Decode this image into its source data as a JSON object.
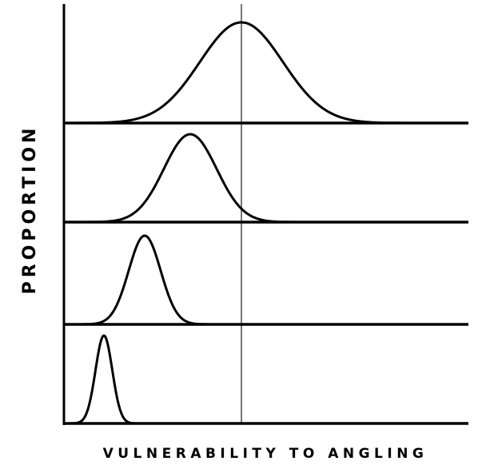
{
  "y_axis_label": "PROPORTION",
  "x_axis_label": "VULNERABILITY TO ANGLING"
}
